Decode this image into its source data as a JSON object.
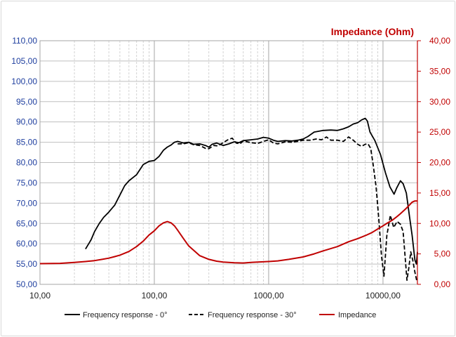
{
  "chart_data": {
    "type": "line",
    "x_scale": "log",
    "xlim": [
      10,
      20000
    ],
    "ylim_left": [
      50,
      110
    ],
    "ylim_right": [
      0,
      40
    ],
    "x_ticks": [
      {
        "value": 10,
        "label": "10,00"
      },
      {
        "value": 100,
        "label": "100,00"
      },
      {
        "value": 1000,
        "label": "1000,00"
      },
      {
        "value": 10000,
        "label": "10000,00"
      }
    ],
    "y_left_ticks": [
      {
        "value": 50,
        "label": "50,00"
      },
      {
        "value": 55,
        "label": "55,00"
      },
      {
        "value": 60,
        "label": "60,00"
      },
      {
        "value": 65,
        "label": "65,00"
      },
      {
        "value": 70,
        "label": "70,00"
      },
      {
        "value": 75,
        "label": "75,00"
      },
      {
        "value": 80,
        "label": "80,00"
      },
      {
        "value": 85,
        "label": "85,00"
      },
      {
        "value": 90,
        "label": "90,00"
      },
      {
        "value": 95,
        "label": "95,00"
      },
      {
        "value": 100,
        "label": "100,00"
      },
      {
        "value": 105,
        "label": "105,00"
      },
      {
        "value": 110,
        "label": "110,00"
      }
    ],
    "y_right_ticks": [
      {
        "value": 0,
        "label": "0,00"
      },
      {
        "value": 5,
        "label": "5,00"
      },
      {
        "value": 10,
        "label": "10,00"
      },
      {
        "value": 15,
        "label": "15,00"
      },
      {
        "value": 20,
        "label": "20,00"
      },
      {
        "value": 25,
        "label": "25,00"
      },
      {
        "value": 30,
        "label": "30,00"
      },
      {
        "value": 35,
        "label": "35,00"
      },
      {
        "value": 40,
        "label": "40,00"
      }
    ],
    "right_axis_title": "Impedance (Ohm)",
    "colors": {
      "freq": "#000000",
      "impedance": "#c00000",
      "left_axis_text": "#1f3f9f",
      "right_axis_text": "#c00000",
      "grid": "#c8c8c8"
    },
    "series": [
      {
        "name": "Frequency response - 0°",
        "axis": "left",
        "style": "solid",
        "points": [
          [
            25,
            58.7
          ],
          [
            28,
            61
          ],
          [
            30,
            63
          ],
          [
            33,
            65
          ],
          [
            36,
            66.5
          ],
          [
            40,
            67.8
          ],
          [
            45,
            69.5
          ],
          [
            50,
            72
          ],
          [
            55,
            74.3
          ],
          [
            60,
            75.5
          ],
          [
            70,
            77
          ],
          [
            80,
            79.5
          ],
          [
            90,
            80.3
          ],
          [
            100,
            80.5
          ],
          [
            110,
            81.5
          ],
          [
            120,
            83
          ],
          [
            130,
            83.8
          ],
          [
            140,
            84.3
          ],
          [
            150,
            85
          ],
          [
            160,
            85.2
          ],
          [
            180,
            84.8
          ],
          [
            200,
            85
          ],
          [
            220,
            84.5
          ],
          [
            250,
            84.6
          ],
          [
            280,
            84.2
          ],
          [
            300,
            83.8
          ],
          [
            320,
            84.5
          ],
          [
            350,
            84.8
          ],
          [
            400,
            84.2
          ],
          [
            450,
            84.6
          ],
          [
            500,
            85.1
          ],
          [
            550,
            84.9
          ],
          [
            600,
            85.4
          ],
          [
            700,
            85.6
          ],
          [
            800,
            85.8
          ],
          [
            900,
            86.2
          ],
          [
            1000,
            86
          ],
          [
            1100,
            85.5
          ],
          [
            1200,
            85.2
          ],
          [
            1400,
            85.4
          ],
          [
            1600,
            85.3
          ],
          [
            1800,
            85.5
          ],
          [
            2000,
            85.8
          ],
          [
            2200,
            86.4
          ],
          [
            2500,
            87.5
          ],
          [
            3000,
            87.9
          ],
          [
            3500,
            88
          ],
          [
            4000,
            87.9
          ],
          [
            4500,
            88.3
          ],
          [
            5000,
            88.8
          ],
          [
            5500,
            89.5
          ],
          [
            6000,
            89.8
          ],
          [
            6500,
            90.5
          ],
          [
            7000,
            90.9
          ],
          [
            7300,
            90.2
          ],
          [
            7700,
            87.5
          ],
          [
            8500,
            85.4
          ],
          [
            9500,
            82
          ],
          [
            10500,
            77.5
          ],
          [
            11500,
            74
          ],
          [
            12500,
            72.2
          ],
          [
            13200,
            73.8
          ],
          [
            14200,
            75.5
          ],
          [
            15000,
            74.8
          ],
          [
            16000,
            72.5
          ],
          [
            17000,
            67
          ],
          [
            18000,
            62
          ],
          [
            19000,
            56
          ],
          [
            19600,
            55
          ],
          [
            20000,
            58
          ]
        ]
      },
      {
        "name": "Frequency response - 30°",
        "axis": "left",
        "style": "dashed",
        "points": [
          [
            160,
            84.6
          ],
          [
            180,
            84.6
          ],
          [
            200,
            84.9
          ],
          [
            220,
            84.4
          ],
          [
            250,
            84.2
          ],
          [
            280,
            83.5
          ],
          [
            300,
            83.4
          ],
          [
            330,
            84.2
          ],
          [
            360,
            84.1
          ],
          [
            400,
            84.9
          ],
          [
            440,
            85.6
          ],
          [
            480,
            86
          ],
          [
            520,
            84.8
          ],
          [
            560,
            84.6
          ],
          [
            600,
            85.3
          ],
          [
            700,
            84.9
          ],
          [
            800,
            84.7
          ],
          [
            900,
            85.2
          ],
          [
            1000,
            85.6
          ],
          [
            1100,
            84.8
          ],
          [
            1200,
            84.6
          ],
          [
            1400,
            85.1
          ],
          [
            1600,
            85
          ],
          [
            1800,
            85.2
          ],
          [
            2000,
            85.5
          ],
          [
            2300,
            85.5
          ],
          [
            2600,
            85.8
          ],
          [
            2900,
            85.6
          ],
          [
            3200,
            86.3
          ],
          [
            3500,
            85.5
          ],
          [
            4000,
            85.5
          ],
          [
            4500,
            85.2
          ],
          [
            5000,
            86.3
          ],
          [
            5500,
            85.5
          ],
          [
            6000,
            84.5
          ],
          [
            6500,
            84
          ],
          [
            7000,
            84.5
          ],
          [
            7400,
            84.6
          ],
          [
            7800,
            83.5
          ],
          [
            8200,
            79.5
          ],
          [
            8700,
            74
          ],
          [
            9200,
            66
          ],
          [
            9700,
            57
          ],
          [
            10200,
            52
          ],
          [
            10800,
            62
          ],
          [
            11600,
            67
          ],
          [
            12400,
            64
          ],
          [
            13300,
            65.5
          ],
          [
            14200,
            64.8
          ],
          [
            15000,
            63
          ],
          [
            15800,
            55
          ],
          [
            16200,
            51
          ],
          [
            16800,
            54
          ],
          [
            17500,
            58
          ],
          [
            18200,
            56
          ],
          [
            19000,
            53
          ],
          [
            19700,
            51
          ]
        ]
      },
      {
        "name": "Impedance",
        "axis": "right",
        "style": "solid",
        "points": [
          [
            10,
            3.4
          ],
          [
            15,
            3.45
          ],
          [
            20,
            3.6
          ],
          [
            25,
            3.75
          ],
          [
            30,
            3.9
          ],
          [
            35,
            4.1
          ],
          [
            40,
            4.3
          ],
          [
            45,
            4.55
          ],
          [
            50,
            4.8
          ],
          [
            60,
            5.4
          ],
          [
            70,
            6.2
          ],
          [
            80,
            7.1
          ],
          [
            90,
            8.1
          ],
          [
            100,
            8.8
          ],
          [
            110,
            9.6
          ],
          [
            120,
            10.1
          ],
          [
            130,
            10.3
          ],
          [
            140,
            10.1
          ],
          [
            150,
            9.6
          ],
          [
            160,
            8.9
          ],
          [
            180,
            7.5
          ],
          [
            200,
            6.3
          ],
          [
            250,
            4.7
          ],
          [
            300,
            4.1
          ],
          [
            350,
            3.8
          ],
          [
            400,
            3.65
          ],
          [
            500,
            3.55
          ],
          [
            600,
            3.5
          ],
          [
            700,
            3.6
          ],
          [
            800,
            3.65
          ],
          [
            900,
            3.7
          ],
          [
            1000,
            3.75
          ],
          [
            1200,
            3.85
          ],
          [
            1500,
            4.1
          ],
          [
            2000,
            4.5
          ],
          [
            2500,
            5
          ],
          [
            3000,
            5.5
          ],
          [
            4000,
            6.2
          ],
          [
            5000,
            7
          ],
          [
            6000,
            7.5
          ],
          [
            7000,
            8
          ],
          [
            8000,
            8.5
          ],
          [
            9000,
            9.1
          ],
          [
            10000,
            9.6
          ],
          [
            11000,
            10.1
          ],
          [
            12000,
            10.5
          ],
          [
            13000,
            11
          ],
          [
            14000,
            11.5
          ],
          [
            15000,
            12
          ],
          [
            16000,
            12.5
          ],
          [
            17000,
            13
          ],
          [
            18000,
            13.5
          ],
          [
            19000,
            13.7
          ],
          [
            20000,
            13.7
          ]
        ]
      }
    ],
    "legend_position": "bottom"
  }
}
